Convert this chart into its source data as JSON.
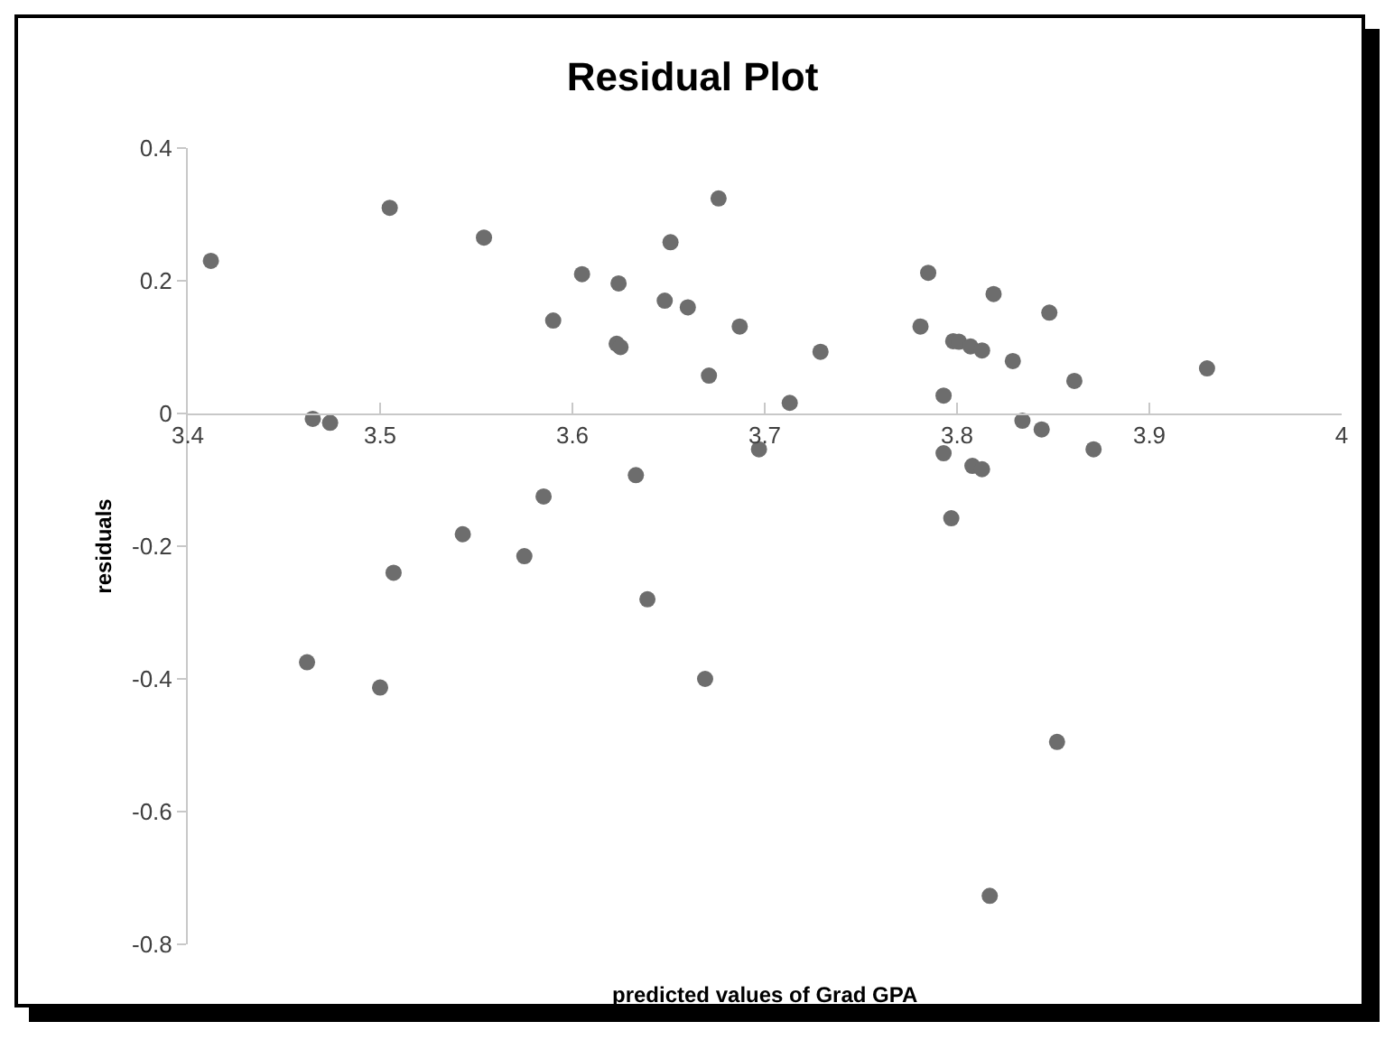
{
  "chart_data": {
    "type": "scatter",
    "title": "Residual Plot",
    "xlabel": "predicted values of Grad GPA",
    "ylabel": "residuals",
    "color": "#6d6d6d",
    "marker": "circle",
    "x": [
      3.412,
      3.505,
      3.554,
      3.605,
      3.624,
      3.623,
      3.625,
      3.648,
      3.66,
      3.59,
      3.651,
      3.676,
      3.671,
      3.687,
      3.713,
      3.729,
      3.781,
      3.785,
      3.793,
      3.798,
      3.801,
      3.807,
      3.813,
      3.819,
      3.829,
      3.848,
      3.861,
      3.93,
      3.834,
      3.844,
      3.871,
      3.793,
      3.808,
      3.813,
      3.697,
      3.797,
      3.465,
      3.474,
      3.633,
      3.585,
      3.543,
      3.575,
      3.507,
      3.462,
      3.5,
      3.639,
      3.669,
      3.852,
      3.817
    ],
    "values": [
      0.23,
      0.31,
      0.265,
      0.21,
      0.196,
      0.105,
      0.1,
      0.17,
      0.16,
      0.14,
      0.258,
      0.324,
      0.057,
      0.131,
      0.016,
      0.093,
      0.131,
      0.212,
      0.027,
      0.109,
      0.108,
      0.101,
      0.095,
      0.18,
      0.079,
      0.152,
      0.049,
      0.068,
      -0.011,
      -0.024,
      -0.054,
      -0.06,
      -0.079,
      -0.084,
      -0.054,
      -0.158,
      -0.008,
      -0.014,
      -0.093,
      -0.125,
      -0.182,
      -0.215,
      -0.24,
      -0.375,
      -0.413,
      -0.28,
      -0.4,
      -0.495,
      -0.727
    ],
    "xlim": [
      3.4,
      4
    ],
    "ylim": [
      -0.8,
      0.4
    ],
    "xticks": [
      3.4,
      3.5,
      3.6,
      3.7,
      3.8,
      3.9,
      4
    ],
    "yticks": [
      -0.8,
      -0.6,
      -0.4,
      -0.2,
      0,
      0.2,
      0.4
    ]
  }
}
